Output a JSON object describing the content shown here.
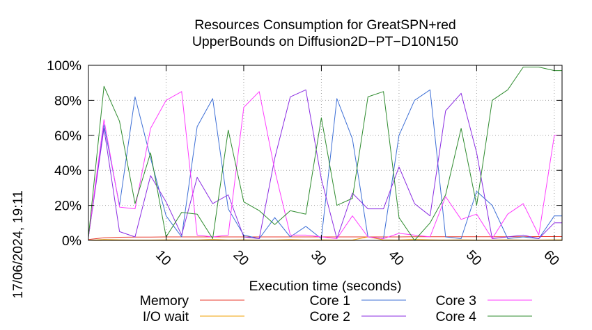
{
  "chart_data": {
    "type": "line",
    "title_line1": "Resources Consumption for GreatSPN+red",
    "title_line2": "UpperBounds on Diffusion2D−PT−D10N150",
    "xlabel": "Execution time (seconds)",
    "timestamp": "17/06/2024, 19:11",
    "xlim": [
      0,
      61
    ],
    "ylim": [
      0,
      100
    ],
    "x_ticks": [
      10,
      20,
      30,
      40,
      50,
      60
    ],
    "y_ticks": [
      0,
      20,
      40,
      60,
      80,
      100
    ],
    "y_tick_labels": [
      "0%",
      "20%",
      "40%",
      "60%",
      "80%",
      "100%"
    ],
    "grid": true,
    "legend_position": "bottom",
    "x": [
      0,
      2,
      4,
      6,
      8,
      10,
      12,
      14,
      16,
      18,
      20,
      22,
      24,
      26,
      28,
      30,
      32,
      34,
      36,
      38,
      40,
      42,
      44,
      46,
      48,
      50,
      52,
      54,
      56,
      58,
      60,
      61
    ],
    "series": [
      {
        "name": "Memory",
        "color": "#e8392b",
        "values": [
          0.5,
          1.5,
          1.8,
          1.9,
          1.9,
          2.0,
          2.0,
          2.0,
          2.0,
          2.0,
          2.0,
          2.0,
          2.0,
          2.0,
          2.0,
          2.0,
          2.0,
          2.0,
          2.0,
          2.0,
          2.0,
          2.1,
          2.1,
          2.1,
          2.1,
          2.1,
          2.1,
          2.1,
          2.1,
          2.2,
          2.2,
          2.2
        ]
      },
      {
        "name": "I/O wait",
        "color": "#f0a000",
        "values": [
          0,
          0.5,
          0.3,
          0.2,
          0.2,
          0.3,
          0.2,
          0.2,
          0.5,
          0.2,
          0.3,
          0.2,
          0.2,
          0.4,
          0.2,
          0.3,
          0.2,
          0.2,
          2.0,
          0.3,
          0.2,
          0.5,
          0.3,
          0.2,
          0.3,
          0.2,
          0.2,
          0.3,
          0.2,
          0.2,
          0.3,
          0.3
        ]
      },
      {
        "name": "Core 1",
        "color": "#3d6fd6",
        "values": [
          2,
          66,
          20,
          82,
          47,
          14,
          2,
          65,
          81,
          18,
          3,
          1,
          13,
          2,
          8,
          1,
          81,
          58,
          2,
          1,
          60,
          80,
          86,
          2,
          1,
          28,
          20,
          1,
          2,
          1,
          14,
          14
        ]
      },
      {
        "name": "Core 2",
        "color": "#8a2be2",
        "values": [
          2,
          64,
          5,
          2,
          37,
          22,
          3,
          36,
          21,
          26,
          2,
          1,
          47,
          82,
          86,
          35,
          1,
          27,
          18,
          18,
          42,
          21,
          14,
          74,
          84,
          50,
          1,
          2,
          3,
          1,
          10,
          10
        ]
      },
      {
        "name": "Core 3",
        "color": "#ff3bff",
        "values": [
          2,
          69,
          19,
          18,
          64,
          80,
          85,
          3,
          2,
          3,
          76,
          85,
          40,
          3,
          3,
          2,
          1,
          14,
          2,
          1,
          4,
          3,
          2,
          25,
          12,
          15,
          1,
          15,
          21,
          3,
          60,
          60
        ]
      },
      {
        "name": "Core 4",
        "color": "#2e8b2e",
        "values": [
          2,
          88,
          68,
          21,
          50,
          2,
          16,
          15,
          1,
          63,
          22,
          17,
          9,
          17,
          15,
          70,
          20,
          24,
          82,
          85,
          13,
          0,
          10,
          26,
          64,
          20,
          80,
          86,
          99,
          99,
          97,
          97
        ]
      }
    ]
  }
}
